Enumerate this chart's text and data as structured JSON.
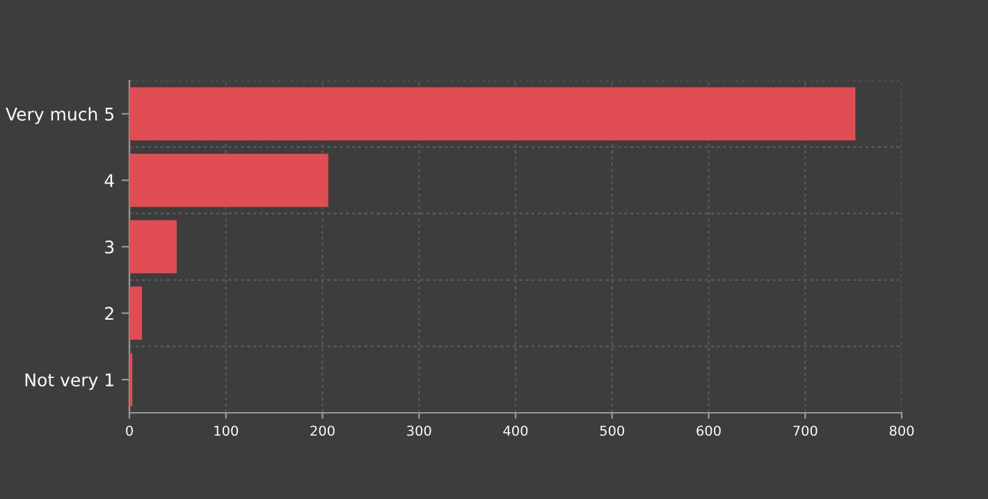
{
  "chart_data": {
    "type": "bar",
    "orientation": "horizontal",
    "categories": [
      "Very much 5",
      "4",
      "3",
      "2",
      "Not very 1"
    ],
    "values": [
      752,
      206,
      49,
      13,
      3
    ],
    "color": "#e04e53",
    "xlim": [
      0,
      800
    ],
    "xticks": [
      0,
      100,
      200,
      300,
      400,
      500,
      600,
      700,
      800
    ],
    "grid": true
  }
}
